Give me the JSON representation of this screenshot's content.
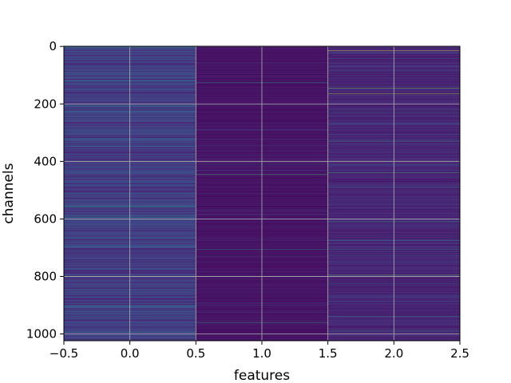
{
  "chart_data": {
    "type": "heatmap",
    "title": "",
    "xlabel": "features",
    "ylabel": "channels",
    "x_columns": [
      0,
      1,
      2
    ],
    "xlim": [
      -0.5,
      2.5
    ],
    "ylim": [
      1023.5,
      -0.5
    ],
    "y_inverted": true,
    "grid": true,
    "colormap": "viridis",
    "x_ticks": [
      -0.5,
      0.0,
      0.5,
      1.0,
      1.5,
      2.0,
      2.5
    ],
    "x_tick_labels": [
      "−0.5",
      "0.0",
      "0.5",
      "1.0",
      "1.5",
      "2.0",
      "2.5"
    ],
    "y_ticks": [
      0,
      200,
      400,
      600,
      800,
      1000
    ],
    "y_tick_labels": [
      "0",
      "200",
      "400",
      "600",
      "800",
      "1000"
    ],
    "n_channels": 1024,
    "base_values": [
      0.18,
      0.05,
      0.1
    ],
    "highlights": [
      {
        "column": 0,
        "channel": 110,
        "value": 0.5
      },
      {
        "column": 0,
        "channel": 205,
        "value": 0.45
      },
      {
        "column": 0,
        "channel": 555,
        "value": 0.55
      },
      {
        "column": 0,
        "channel": 800,
        "value": 0.75
      },
      {
        "column": 0,
        "channel": 995,
        "value": 0.5
      },
      {
        "column": 1,
        "channel": 125,
        "value": 0.5
      },
      {
        "column": 1,
        "channel": 410,
        "value": 0.45
      },
      {
        "column": 1,
        "channel": 445,
        "value": 0.7
      },
      {
        "column": 1,
        "channel": 705,
        "value": 0.5
      },
      {
        "column": 1,
        "channel": 800,
        "value": 0.45
      },
      {
        "column": 1,
        "channel": 960,
        "value": 0.6
      },
      {
        "column": 2,
        "channel": 15,
        "value": 1.0
      },
      {
        "column": 2,
        "channel": 145,
        "value": 0.8
      },
      {
        "column": 2,
        "channel": 165,
        "value": 0.9
      },
      {
        "column": 2,
        "channel": 230,
        "value": 0.45
      },
      {
        "column": 2,
        "channel": 270,
        "value": 0.4
      },
      {
        "column": 2,
        "channel": 330,
        "value": 0.6
      },
      {
        "column": 2,
        "channel": 400,
        "value": 0.45
      },
      {
        "column": 2,
        "channel": 440,
        "value": 0.7
      },
      {
        "column": 2,
        "channel": 490,
        "value": 0.4
      },
      {
        "column": 2,
        "channel": 610,
        "value": 0.6
      },
      {
        "column": 2,
        "channel": 675,
        "value": 0.45
      },
      {
        "column": 2,
        "channel": 705,
        "value": 0.5
      },
      {
        "column": 2,
        "channel": 795,
        "value": 0.75
      },
      {
        "column": 2,
        "channel": 825,
        "value": 0.45
      },
      {
        "column": 2,
        "channel": 940,
        "value": 0.6
      },
      {
        "column": 2,
        "channel": 990,
        "value": 0.55
      }
    ]
  }
}
